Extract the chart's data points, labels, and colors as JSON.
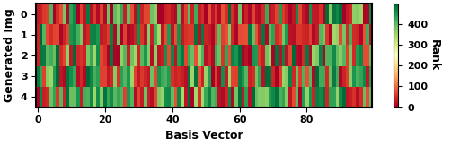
{
  "n_images": 5,
  "n_basis": 100,
  "rank_min": 0,
  "rank_max": 500,
  "xlabel": "Basis Vector",
  "ylabel": "Generated Img",
  "colorbar_label": "Rank",
  "colorbar_ticks": [
    0,
    100,
    200,
    300,
    400
  ],
  "xticks": [
    0,
    20,
    40,
    60,
    80
  ],
  "yticks": [
    0,
    1,
    2,
    3,
    4
  ],
  "seed": 7,
  "figsize": [
    5.12,
    1.62
  ],
  "dpi": 100,
  "label_fontsize": 9,
  "tick_fontsize": 8,
  "colors": [
    "#ff0000",
    "#007700"
  ],
  "colormap_name": "RdYlGn"
}
